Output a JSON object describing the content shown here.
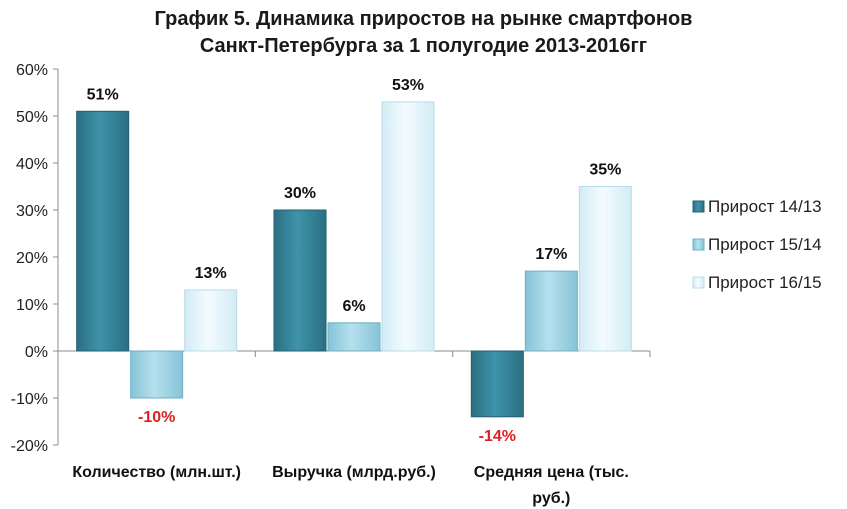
{
  "chart_data": {
    "type": "bar",
    "title": [
      "График 5. Динамика приростов  на рынке смартфонов",
      "Санкт-Петербурга за 1 полугодие 2013-2016гг"
    ],
    "categories": [
      [
        "Количество (млн.шт.)"
      ],
      [
        "Выручка (млрд.руб.)"
      ],
      [
        "Средняя цена (тыс.",
        "руб.)"
      ]
    ],
    "series": [
      {
        "name": "Прирост 14/13",
        "values": [
          51,
          30,
          -14
        ],
        "labels": [
          "51%",
          "30%",
          "-14%"
        ],
        "color": "#3a8aa0"
      },
      {
        "name": "Прирост 15/14",
        "values": [
          -10,
          6,
          17
        ],
        "labels": [
          "-10%",
          "6%",
          "17%"
        ],
        "color": "#a8d8e8"
      },
      {
        "name": "Прирост 16/15",
        "values": [
          13,
          53,
          35
        ],
        "labels": [
          "13%",
          "53%",
          "35%"
        ],
        "color": "#eaf7fc"
      }
    ],
    "y_ticks": [
      "60%",
      "50%",
      "40%",
      "30%",
      "20%",
      "10%",
      "0%",
      "-10%",
      "-20%"
    ],
    "ylim": [
      -20,
      60
    ],
    "negative_label_color": "#e02020",
    "legend_position": "right",
    "grid": false
  }
}
